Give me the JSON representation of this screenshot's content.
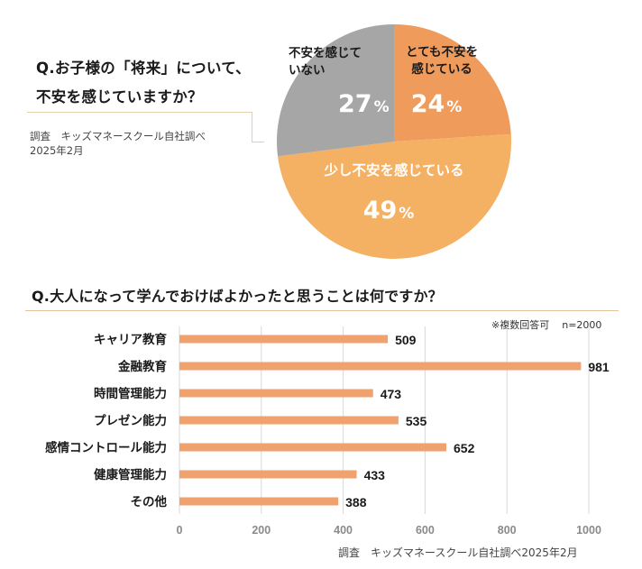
{
  "question1": {
    "line1": "Q.お子様の「将来」について、",
    "line2": "不安を感じていますか？",
    "source_line1": "調査　キッズマネースクール自社調べ",
    "source_line2": "2025年2月"
  },
  "question2": {
    "title": "Q.大人になって学んでおけばよかったと思うことは何ですか？",
    "note_label": "※複数回答可",
    "note_n": "n=2000",
    "source": "調査　キッズマネースクール自社調べ2025年2月"
  },
  "colors": {
    "very_anxious": "#ef9b5c",
    "somewhat_anxious": "#f4b063",
    "not_anxious": "#a6a6a6",
    "bar": "#f0a26e",
    "accent_line": "#e1c49a"
  },
  "chart_data": [
    {
      "type": "pie",
      "title": "Q.お子様の「将来」について、不安を感じていますか？",
      "start_angle_deg": 0,
      "direction": "clockwise",
      "slices": [
        {
          "label_lines": [
            "とても不安を",
            "感じている"
          ],
          "value": 24,
          "display": "24",
          "unit": "%",
          "color": "#ef9b5c",
          "label_color": "#1a1a1a"
        },
        {
          "label_lines": [
            "少し不安を感じている"
          ],
          "value": 49,
          "display": "49",
          "unit": "%",
          "color": "#f4b063",
          "label_color": "#ffffff"
        },
        {
          "label_lines": [
            "不安を感じて",
            "いない"
          ],
          "value": 27,
          "display": "27",
          "unit": "%",
          "color": "#a6a6a6",
          "label_color": "#1a1a1a"
        }
      ]
    },
    {
      "type": "bar",
      "orientation": "horizontal",
      "title": "Q.大人になって学んでおけばよかったと思うことは何ですか？",
      "categories": [
        "キャリア教育",
        "金融教育",
        "時間管理能力",
        "プレゼン能力",
        "感情コントロール能力",
        "健康管理能力",
        "その他"
      ],
      "values": [
        509,
        981,
        473,
        535,
        652,
        433,
        388
      ],
      "xlim": [
        0,
        1000
      ],
      "xticks": [
        0,
        200,
        400,
        600,
        800,
        1000
      ],
      "grid": true,
      "xlabel": "",
      "ylabel": "",
      "data_labels": true
    }
  ]
}
